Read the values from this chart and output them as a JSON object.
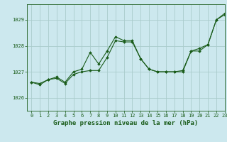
{
  "title": "Graphe pression niveau de la mer (hPa)",
  "xlim": [
    -0.5,
    23
  ],
  "ylim": [
    1025.5,
    1029.6
  ],
  "yticks": [
    1026,
    1027,
    1028,
    1029
  ],
  "xticks": [
    0,
    1,
    2,
    3,
    4,
    5,
    6,
    7,
    8,
    9,
    10,
    11,
    12,
    13,
    14,
    15,
    16,
    17,
    18,
    19,
    20,
    21,
    22,
    23
  ],
  "bg_color": "#cce8ee",
  "grid_color": "#aacccc",
  "line_color": "#1a5c1a",
  "series1": {
    "x": [
      0,
      1,
      2,
      3,
      4,
      5,
      6,
      7,
      8,
      9,
      10,
      11,
      12,
      13,
      14,
      15,
      16,
      17,
      18,
      19,
      20,
      21,
      22,
      23
    ],
    "y": [
      1026.6,
      1026.5,
      1026.7,
      1026.8,
      1026.6,
      1027.0,
      1027.1,
      1027.75,
      1027.3,
      1027.8,
      1028.35,
      1028.2,
      1028.2,
      1027.5,
      1027.1,
      1027.0,
      1027.0,
      1027.0,
      1027.0,
      1027.8,
      1027.9,
      1028.05,
      1029.0,
      1029.25
    ]
  },
  "series2": {
    "x": [
      0,
      1,
      2,
      3,
      4,
      5,
      6,
      7,
      8,
      9,
      10,
      11,
      12,
      13,
      14,
      15,
      16,
      17,
      18,
      19,
      20,
      21,
      22,
      23
    ],
    "y": [
      1026.6,
      1026.55,
      1026.7,
      1026.75,
      1026.55,
      1026.9,
      1027.0,
      1027.05,
      1027.05,
      1027.55,
      1028.2,
      1028.15,
      1028.15,
      1027.5,
      1027.1,
      1027.0,
      1027.0,
      1027.0,
      1027.05,
      1027.8,
      1027.8,
      1028.05,
      1029.0,
      1029.2
    ]
  },
  "text_color": "#1a5c1a",
  "label_fontsize": 6.5,
  "tick_fontsize": 5.0
}
